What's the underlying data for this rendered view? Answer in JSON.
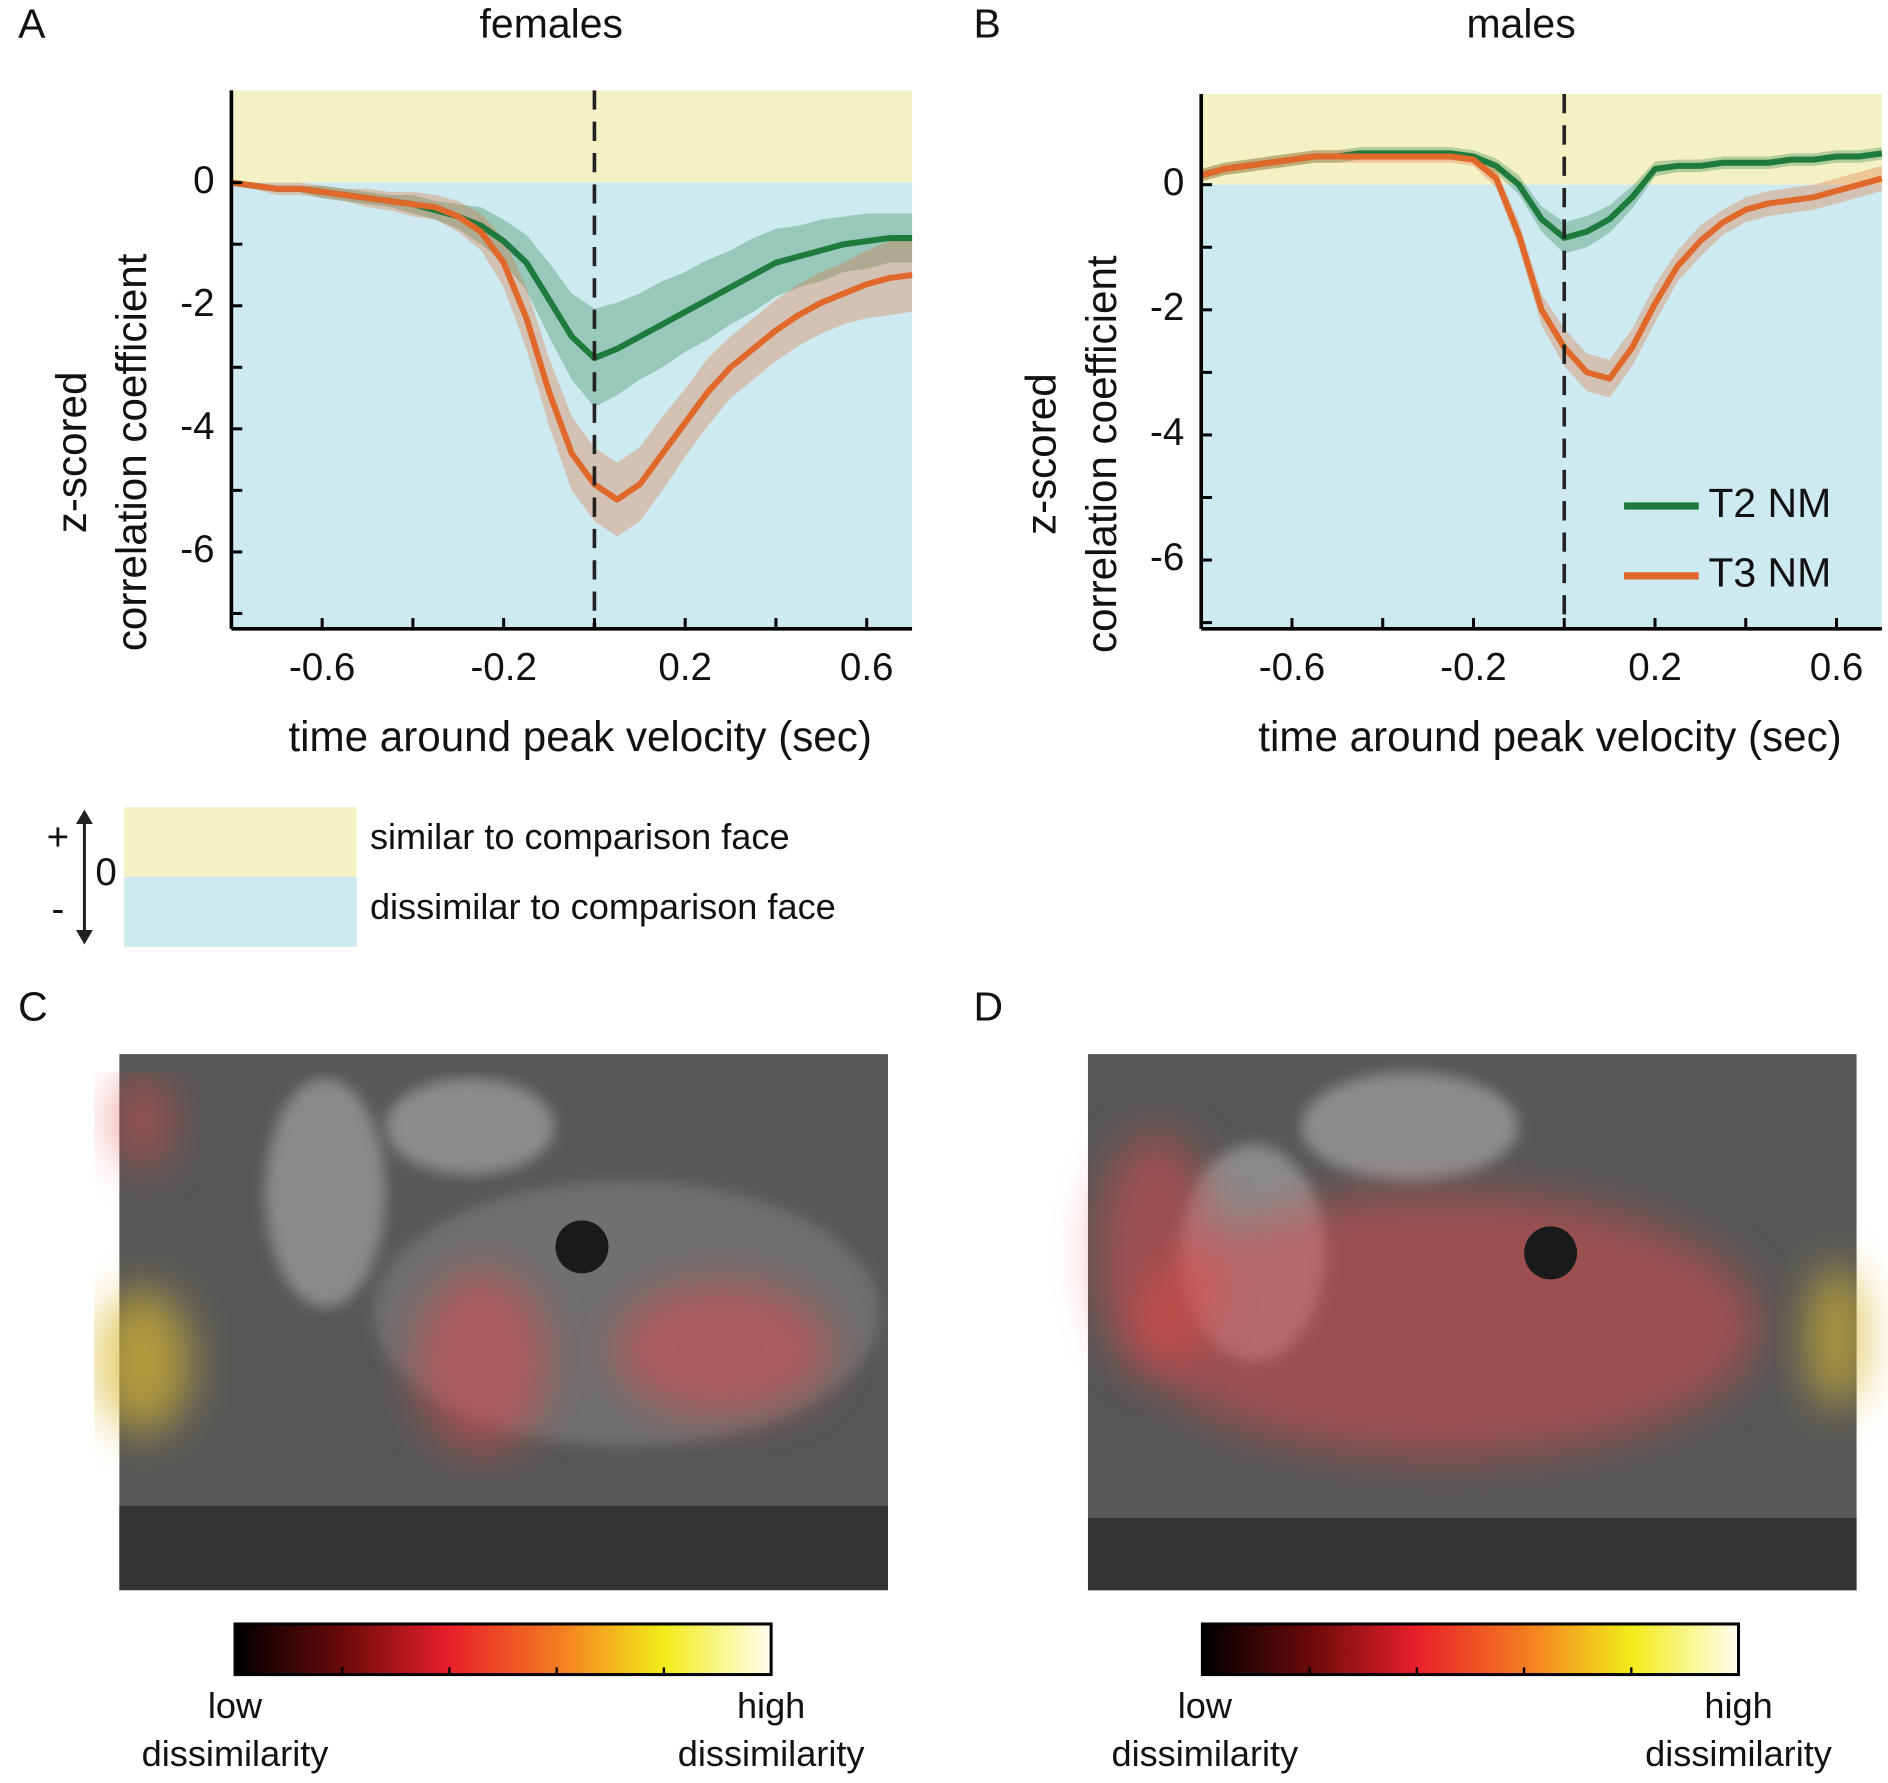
{
  "panel_labels": [
    "A",
    "B",
    "C",
    "D"
  ],
  "chart_data": [
    {
      "type": "line",
      "title": "females",
      "x_label": "time around peak velocity (sec)",
      "y_label": [
        "z-scored",
        "correlation coefficient"
      ],
      "x": [
        -0.8,
        -0.75,
        -0.7,
        -0.65,
        -0.6,
        -0.55,
        -0.5,
        -0.45,
        -0.4,
        -0.35,
        -0.3,
        -0.25,
        -0.2,
        -0.15,
        -0.1,
        -0.05,
        0,
        0.05,
        0.1,
        0.15,
        0.2,
        0.25,
        0.3,
        0.35,
        0.4,
        0.45,
        0.5,
        0.55,
        0.6,
        0.65,
        0.7
      ],
      "series": [
        {
          "color": "#1f7a3e",
          "values": [
            0,
            -0.05,
            -0.1,
            -0.1,
            -0.15,
            -0.2,
            -0.25,
            -0.3,
            -0.35,
            -0.45,
            -0.55,
            -0.7,
            -0.95,
            -1.3,
            -1.9,
            -2.5,
            -2.85,
            -2.7,
            -2.5,
            -2.3,
            -2.1,
            -1.9,
            -1.7,
            -1.5,
            -1.3,
            -1.2,
            -1.1,
            -1.0,
            -0.95,
            -0.9,
            -0.9
          ],
          "errors": [
            0.05,
            0.05,
            0.05,
            0.05,
            0.1,
            0.1,
            0.1,
            0.1,
            0.15,
            0.15,
            0.2,
            0.3,
            0.35,
            0.45,
            0.6,
            0.7,
            0.8,
            0.75,
            0.7,
            0.7,
            0.65,
            0.65,
            0.6,
            0.6,
            0.55,
            0.5,
            0.5,
            0.45,
            0.45,
            0.4,
            0.4
          ]
        },
        {
          "color": "#e0682a",
          "values": [
            0,
            -0.05,
            -0.1,
            -0.1,
            -0.15,
            -0.2,
            -0.25,
            -0.3,
            -0.35,
            -0.4,
            -0.55,
            -0.8,
            -1.3,
            -2.2,
            -3.4,
            -4.4,
            -4.9,
            -5.15,
            -4.9,
            -4.4,
            -3.9,
            -3.4,
            -3.0,
            -2.7,
            -2.4,
            -2.15,
            -1.95,
            -1.8,
            -1.65,
            -1.55,
            -1.5
          ],
          "errors": [
            0.05,
            0.05,
            0.1,
            0.1,
            0.1,
            0.1,
            0.15,
            0.15,
            0.2,
            0.2,
            0.25,
            0.3,
            0.4,
            0.5,
            0.55,
            0.6,
            0.6,
            0.6,
            0.6,
            0.6,
            0.55,
            0.55,
            0.5,
            0.5,
            0.5,
            0.5,
            0.5,
            0.5,
            0.55,
            0.6,
            0.6
          ]
        }
      ],
      "xlim": [
        -0.8,
        0.7
      ],
      "xticks": [
        -0.6,
        -0.2,
        0.2,
        0.6
      ],
      "x_minor_ticks": [
        -0.4,
        0,
        0.4
      ],
      "ylim": [
        -7.25,
        1.5
      ],
      "yticks": [
        0,
        -2,
        -4,
        -6
      ],
      "y_minor_ticks": [
        -1,
        -3,
        -5,
        -7
      ],
      "vline": 0,
      "legend": false
    },
    {
      "type": "line",
      "title": "males",
      "x_label": "time around peak velocity (sec)",
      "y_label": [
        "z-scored",
        "correlation coefficient"
      ],
      "x": [
        -0.8,
        -0.75,
        -0.7,
        -0.65,
        -0.6,
        -0.55,
        -0.5,
        -0.45,
        -0.4,
        -0.35,
        -0.3,
        -0.25,
        -0.2,
        -0.15,
        -0.1,
        -0.05,
        0,
        0.05,
        0.1,
        0.15,
        0.2,
        0.25,
        0.3,
        0.35,
        0.4,
        0.45,
        0.5,
        0.55,
        0.6,
        0.65,
        0.7
      ],
      "series": [
        {
          "name": "T2 NM",
          "color": "#1f7a3e",
          "values": [
            0.15,
            0.25,
            0.3,
            0.35,
            0.4,
            0.45,
            0.45,
            0.5,
            0.5,
            0.5,
            0.5,
            0.5,
            0.45,
            0.3,
            0,
            -0.55,
            -0.85,
            -0.75,
            -0.55,
            -0.2,
            0.25,
            0.3,
            0.3,
            0.35,
            0.35,
            0.35,
            0.4,
            0.4,
            0.45,
            0.45,
            0.5
          ],
          "errors": [
            0.1,
            0.1,
            0.1,
            0.1,
            0.1,
            0.1,
            0.1,
            0.1,
            0.1,
            0.1,
            0.1,
            0.1,
            0.1,
            0.12,
            0.15,
            0.2,
            0.25,
            0.25,
            0.22,
            0.18,
            0.12,
            0.1,
            0.1,
            0.1,
            0.1,
            0.1,
            0.1,
            0.1,
            0.1,
            0.1,
            0.1
          ]
        },
        {
          "name": "T3 NM",
          "color": "#e0682a",
          "values": [
            0.15,
            0.25,
            0.3,
            0.35,
            0.4,
            0.45,
            0.45,
            0.45,
            0.45,
            0.45,
            0.45,
            0.45,
            0.4,
            0.1,
            -0.8,
            -2.0,
            -2.6,
            -3.0,
            -3.1,
            -2.6,
            -1.9,
            -1.3,
            -0.9,
            -0.6,
            -0.4,
            -0.3,
            -0.25,
            -0.2,
            -0.1,
            0,
            0.1
          ],
          "errors": [
            0.1,
            0.1,
            0.1,
            0.1,
            0.1,
            0.1,
            0.1,
            0.1,
            0.1,
            0.1,
            0.1,
            0.1,
            0.1,
            0.15,
            0.2,
            0.25,
            0.3,
            0.3,
            0.3,
            0.3,
            0.3,
            0.25,
            0.25,
            0.2,
            0.2,
            0.2,
            0.2,
            0.2,
            0.2,
            0.2,
            0.2
          ]
        }
      ],
      "xlim": [
        -0.8,
        0.7
      ],
      "xticks": [
        -0.6,
        -0.2,
        0.2,
        0.6
      ],
      "x_minor_ticks": [
        -0.4,
        0,
        0.4
      ],
      "ylim": [
        -7.1,
        1.45
      ],
      "yticks": [
        0,
        -2,
        -4,
        -6
      ],
      "y_minor_ticks": [
        -1,
        -3,
        -5,
        -7
      ],
      "vline": 0,
      "legend": "lower right"
    }
  ],
  "key": {
    "plus": "+",
    "zero": "0",
    "minus": "-",
    "similar": "similar to comparison face",
    "dissimilar": "dissimilar to comparison face"
  },
  "colorbars": [
    {
      "low": [
        "low",
        "dissimilarity"
      ],
      "high": [
        "high",
        "dissimilarity"
      ]
    },
    {
      "low": [
        "low",
        "dissimilarity"
      ],
      "high": [
        "high",
        "dissimilarity"
      ]
    }
  ]
}
